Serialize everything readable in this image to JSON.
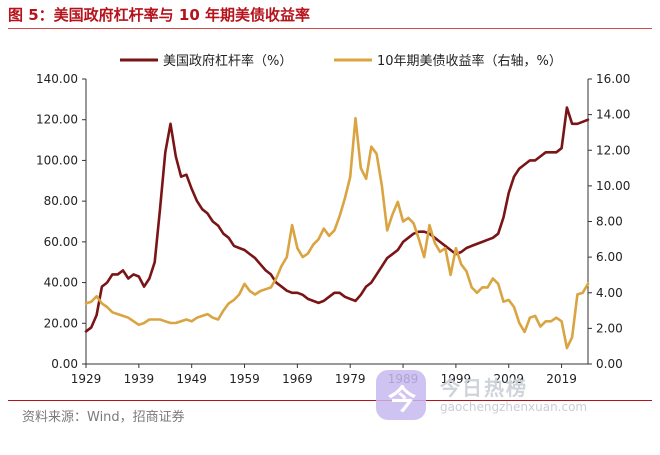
{
  "header": {
    "title": "图 5：美国政府杠杆率与 10 年期美债收益率"
  },
  "footer": {
    "source": "资料来源：Wind，招商证券"
  },
  "watermark": {
    "glyph": "今",
    "name": "今日热榜",
    "url": "gaochengzhenxuan.com"
  },
  "colors": {
    "leverage": "#7b1416",
    "yield": "#d9a441",
    "title": "#b5121b"
  },
  "chart_data": {
    "type": "line",
    "title": "",
    "x_ticks": [
      "1929",
      "1939",
      "1949",
      "1959",
      "1969",
      "1979",
      "1989",
      "1999",
      "2009",
      "2019"
    ],
    "xlim": [
      1929,
      2024
    ],
    "y_left": {
      "lim": [
        0,
        140
      ],
      "ticks": [
        "0.00",
        "20.00",
        "40.00",
        "60.00",
        "80.00",
        "100.00",
        "120.00",
        "140.00"
      ]
    },
    "y_right": {
      "lim": [
        0,
        16
      ],
      "ticks": [
        "0.00",
        "2.00",
        "4.00",
        "6.00",
        "8.00",
        "10.00",
        "12.00",
        "14.00",
        "16.00"
      ]
    },
    "legend": "top",
    "grid": false,
    "series": [
      {
        "name": "美国政府杠杆率（%）",
        "axis": "left",
        "x": [
          1929,
          1930,
          1931,
          1932,
          1933,
          1934,
          1935,
          1936,
          1937,
          1938,
          1939,
          1940,
          1941,
          1942,
          1943,
          1944,
          1945,
          1946,
          1947,
          1948,
          1949,
          1950,
          1951,
          1952,
          1953,
          1954,
          1955,
          1956,
          1957,
          1958,
          1959,
          1960,
          1961,
          1962,
          1963,
          1964,
          1965,
          1966,
          1967,
          1968,
          1969,
          1970,
          1971,
          1972,
          1973,
          1974,
          1975,
          1976,
          1977,
          1978,
          1979,
          1980,
          1981,
          1982,
          1983,
          1984,
          1985,
          1986,
          1987,
          1988,
          1989,
          1990,
          1991,
          1992,
          1993,
          1994,
          1995,
          1996,
          1997,
          1998,
          1999,
          2000,
          2001,
          2002,
          2003,
          2004,
          2005,
          2006,
          2007,
          2008,
          2009,
          2010,
          2011,
          2012,
          2013,
          2014,
          2015,
          2016,
          2017,
          2018,
          2019,
          2020,
          2021,
          2022,
          2023,
          2024
        ],
        "values": [
          16,
          18,
          24,
          38,
          40,
          44,
          44,
          46,
          42,
          44,
          43,
          38,
          42,
          50,
          76,
          104,
          118,
          102,
          92,
          93,
          86,
          80,
          76,
          74,
          70,
          68,
          64,
          62,
          58,
          57,
          56,
          54,
          52,
          49,
          46,
          44,
          40,
          38,
          36,
          35,
          35,
          34,
          32,
          31,
          30,
          31,
          33,
          35,
          35,
          33,
          32,
          31,
          34,
          38,
          40,
          44,
          48,
          52,
          54,
          56,
          60,
          62,
          64,
          65,
          65,
          64,
          62,
          60,
          58,
          56,
          54,
          55,
          57,
          58,
          59,
          60,
          61,
          62,
          64,
          72,
          84,
          92,
          96,
          98,
          100,
          100,
          102,
          104,
          104,
          104,
          106,
          126,
          118,
          118,
          119,
          120
        ]
      },
      {
        "name": "10年期美债收益率（右轴，%）",
        "axis": "right",
        "x": [
          1929,
          1930,
          1931,
          1932,
          1933,
          1934,
          1935,
          1936,
          1937,
          1938,
          1939,
          1940,
          1941,
          1942,
          1943,
          1944,
          1945,
          1946,
          1947,
          1948,
          1949,
          1950,
          1951,
          1952,
          1953,
          1954,
          1955,
          1956,
          1957,
          1958,
          1959,
          1960,
          1961,
          1962,
          1963,
          1964,
          1965,
          1966,
          1967,
          1968,
          1969,
          1970,
          1971,
          1972,
          1973,
          1974,
          1975,
          1976,
          1977,
          1978,
          1979,
          1980,
          1981,
          1982,
          1983,
          1984,
          1985,
          1986,
          1987,
          1988,
          1989,
          1990,
          1991,
          1992,
          1993,
          1994,
          1995,
          1996,
          1997,
          1998,
          1999,
          2000,
          2001,
          2002,
          2003,
          2004,
          2005,
          2006,
          2007,
          2008,
          2009,
          2010,
          2011,
          2012,
          2013,
          2014,
          2015,
          2016,
          2017,
          2018,
          2019,
          2020,
          2021,
          2022,
          2023,
          2024
        ],
        "values": [
          3.4,
          3.5,
          3.8,
          3.4,
          3.2,
          2.9,
          2.8,
          2.7,
          2.6,
          2.4,
          2.2,
          2.3,
          2.5,
          2.5,
          2.5,
          2.4,
          2.3,
          2.3,
          2.4,
          2.5,
          2.4,
          2.6,
          2.7,
          2.8,
          2.6,
          2.5,
          3.0,
          3.4,
          3.6,
          3.9,
          4.5,
          4.1,
          3.9,
          4.1,
          4.2,
          4.3,
          4.8,
          5.5,
          6.0,
          7.8,
          6.5,
          6.0,
          6.2,
          6.7,
          7.0,
          7.6,
          7.2,
          7.5,
          8.3,
          9.3,
          10.5,
          13.8,
          11.0,
          10.4,
          12.2,
          11.8,
          10.0,
          7.5,
          8.4,
          9.1,
          8.0,
          8.2,
          7.9,
          7.0,
          6.0,
          7.8,
          6.8,
          6.3,
          6.5,
          5.0,
          6.5,
          5.6,
          5.2,
          4.3,
          4.0,
          4.3,
          4.3,
          4.8,
          4.5,
          3.5,
          3.6,
          3.2,
          2.3,
          1.8,
          2.6,
          2.7,
          2.1,
          2.4,
          2.4,
          2.6,
          2.4,
          0.9,
          1.5,
          3.9,
          4.0,
          4.5
        ]
      }
    ]
  }
}
